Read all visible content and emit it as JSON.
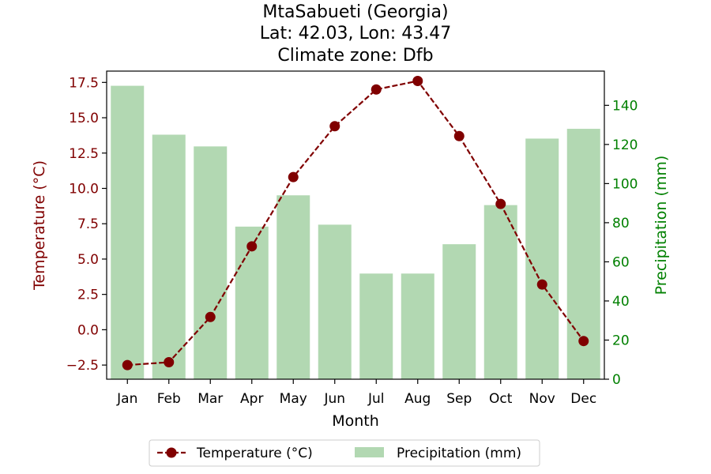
{
  "chart_data": {
    "type": "bar+line",
    "title_lines": [
      "MtaSabueti (Georgia)",
      "Lat: 42.03, Lon: 43.47",
      "Climate zone: Dfb"
    ],
    "xlabel": "Month",
    "categories": [
      "Jan",
      "Feb",
      "Mar",
      "Apr",
      "May",
      "Jun",
      "Jul",
      "Aug",
      "Sep",
      "Oct",
      "Nov",
      "Dec"
    ],
    "temperature": {
      "name": "Temperature (°C)",
      "axis_label": "Temperature (°C)",
      "values": [
        -2.5,
        -2.3,
        0.9,
        5.9,
        10.8,
        14.4,
        17.0,
        17.6,
        13.7,
        8.9,
        3.2,
        -0.8
      ],
      "ylim": [
        -3.5,
        18.3
      ],
      "ticks": [
        -2.5,
        0.0,
        2.5,
        5.0,
        7.5,
        10.0,
        12.5,
        15.0,
        17.5
      ],
      "tick_labels": [
        "−2.5",
        "0.0",
        "2.5",
        "5.0",
        "7.5",
        "10.0",
        "12.5",
        "15.0",
        "17.5"
      ],
      "color": "#800000"
    },
    "precipitation": {
      "name": "Precipitation (mm)",
      "axis_label": "Precipitation (mm)",
      "values": [
        150,
        125,
        119,
        78,
        94,
        79,
        54,
        54,
        69,
        89,
        123,
        128
      ],
      "ylim": [
        0,
        157.5
      ],
      "ticks": [
        0,
        20,
        40,
        60,
        80,
        100,
        120,
        140
      ],
      "tick_labels": [
        "0",
        "20",
        "40",
        "60",
        "80",
        "100",
        "120",
        "140"
      ],
      "color": "#b2d8b2",
      "axis_color": "#008000"
    },
    "legend": {
      "placement": "bottom-center",
      "entries": [
        "Temperature (°C)",
        "Precipitation (mm)"
      ]
    }
  }
}
